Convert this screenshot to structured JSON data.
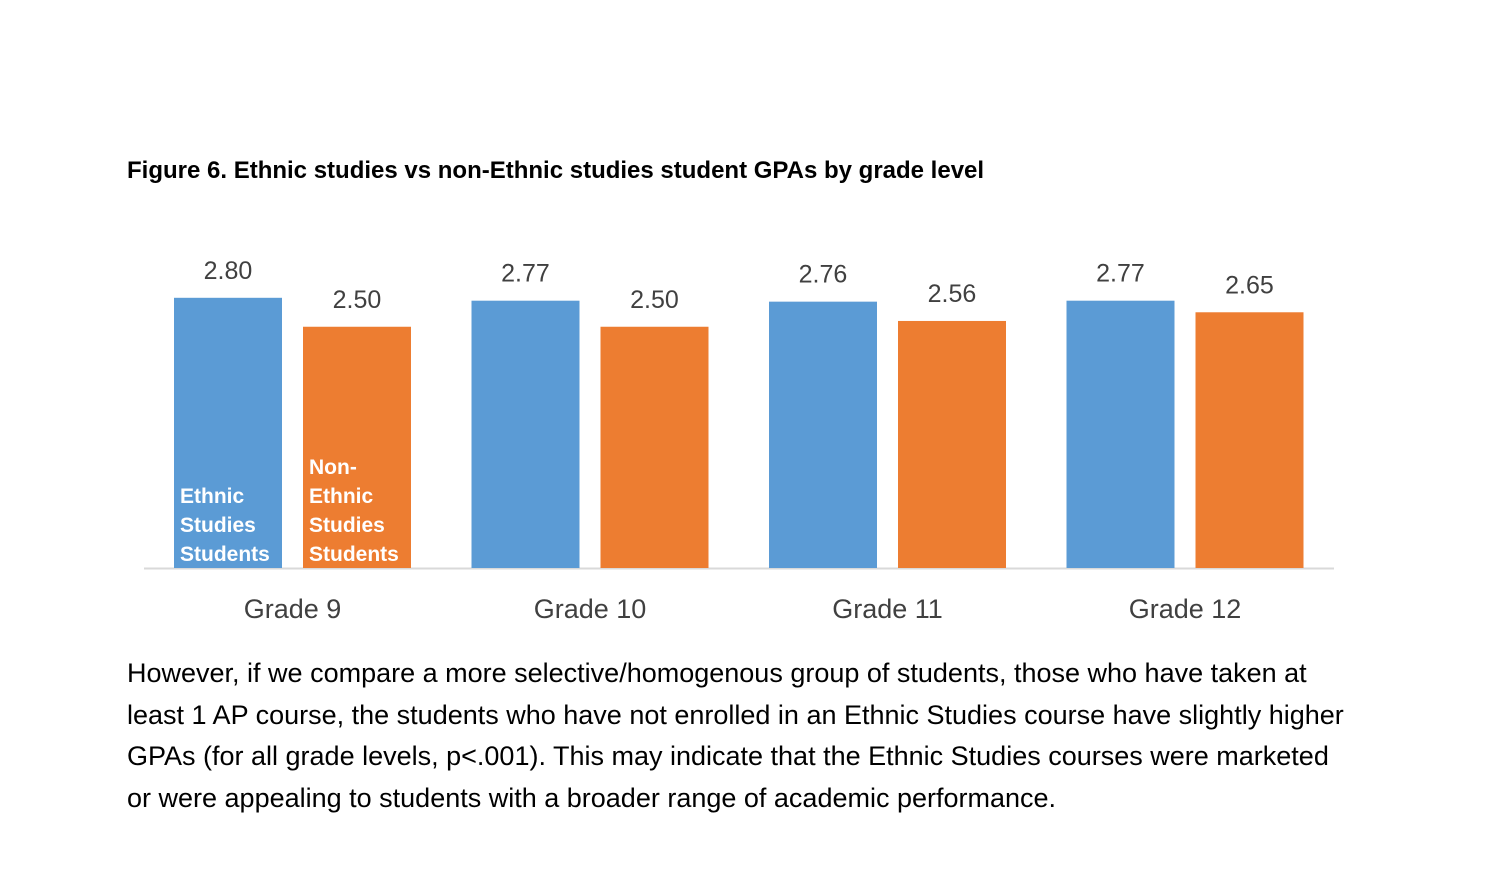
{
  "figure": {
    "title": "Figure 6.  Ethnic studies vs non-Ethnic studies student GPAs by grade level"
  },
  "chart_data": {
    "type": "bar",
    "title": "Figure 6.  Ethnic studies vs non-Ethnic studies student GPAs by grade level",
    "categories": [
      "Grade 9",
      "Grade 10",
      "Grade 11",
      "Grade 12"
    ],
    "series": [
      {
        "name": "Ethnic Studies Students",
        "label_lines": [
          "Ethnic",
          "Studies",
          "Students"
        ],
        "color": "#5b9bd5",
        "values": [
          2.8,
          2.77,
          2.76,
          2.77
        ],
        "value_labels": [
          "2.80",
          "2.77",
          "2.76",
          "2.77"
        ]
      },
      {
        "name": "Non-Ethnic Studies Students",
        "label_lines": [
          "Non-",
          "Ethnic",
          "Studies",
          "Students"
        ],
        "color": "#ed7d31",
        "values": [
          2.5,
          2.5,
          2.56,
          2.65
        ],
        "value_labels": [
          "2.50",
          "2.50",
          "2.56",
          "2.65"
        ]
      }
    ],
    "xlabel": "",
    "ylabel": "",
    "legend": "inside-first-bars",
    "grid": false
  },
  "paragraph": {
    "text": "However, if we compare a more selective/homogenous group of students, those who have taken at least 1 AP course, the students who have not enrolled in an Ethnic Studies course have slightly higher GPAs (for all grade levels, p<.001).   This may indicate that the Ethnic Studies courses were marketed or were appealing to students with a broader range of academic performance."
  }
}
